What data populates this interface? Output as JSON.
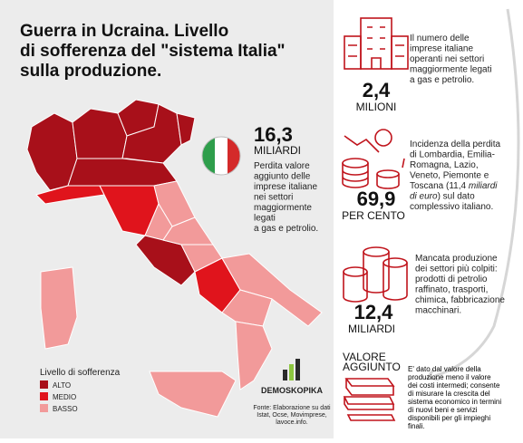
{
  "title_lines": [
    "Guerra in Ucraina. Livello",
    "di sofferenza del \"sistema Italia\"",
    "sulla produzione."
  ],
  "center": {
    "number": "16,3",
    "unit": "MILIARDI",
    "text_lines": [
      "Perdita valore",
      "aggiunto delle",
      "imprese italiane",
      "nei settori",
      "maggiormente",
      "legati",
      "a gas e petrolio."
    ]
  },
  "stats": [
    {
      "number": "2,4",
      "unit": "MILIONI",
      "text_lines": [
        "Il numero delle",
        "imprese italiane",
        "operanti nei settori",
        "maggiormente legati",
        "a gas e petrolio."
      ]
    },
    {
      "number": "69,9",
      "unit": "PER CENTO",
      "text_lines": [
        "Incidenza della perdita",
        "di Lombardia, Emilia-",
        "Romagna, Lazio,",
        "Veneto, Piemonte e",
        "Toscana (11,4 ",
        "miliardi",
        "di euro",
        ") sul dato",
        "complessivo italiano."
      ]
    },
    {
      "number": "12,4",
      "unit": "MILIARDI",
      "text_lines": [
        "Mancata produzione",
        "dei settori più colpiti:",
        "prodotti di petrolio",
        "raffinato, trasporti,",
        "chimica, fabbricazione",
        "macchinari."
      ]
    }
  ],
  "definition": {
    "title_lines": [
      "VALORE",
      "AGGIUNTO"
    ],
    "text_lines": [
      "E' dato dal valore della",
      "produzione meno il valore",
      "dei costi intermedi; consente",
      "di misurare la crescita del",
      "sistema economico in termini",
      "di nuovi beni e servizi",
      "disponibili per gli impieghi",
      "finali."
    ]
  },
  "legend": {
    "title": "Livello di sofferenza",
    "items": [
      {
        "label": "ALTO",
        "color": "#a8101a"
      },
      {
        "label": "MEDIO",
        "color": "#e0141c"
      },
      {
        "label": "BASSO",
        "color": "#f29a9a"
      }
    ]
  },
  "logo": {
    "name": "DEMOSKOPIKA"
  },
  "source_lines": [
    "Fonte: Elaborazione su dati",
    "Istat, Ocse, Movimprese,",
    "lavoce.info."
  ]
}
